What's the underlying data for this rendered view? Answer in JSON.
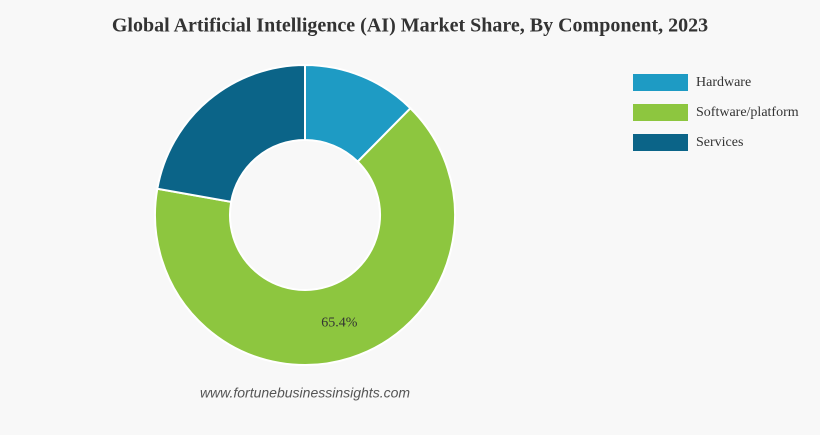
{
  "chart_data": {
    "type": "pie",
    "title": "Global Artificial Intelligence (AI) Market Share, By Component, 2023",
    "categories": [
      "Hardware",
      "Software/platform",
      "Services"
    ],
    "values": [
      12.4,
      65.4,
      22.2
    ],
    "value_labels": [
      null,
      "65.4%",
      null
    ],
    "colors": [
      "#1e9bc4",
      "#8dc63f",
      "#0b6488"
    ],
    "hole": true,
    "legend": "top-right",
    "source": "www.fortunebusinessinsights.com"
  }
}
